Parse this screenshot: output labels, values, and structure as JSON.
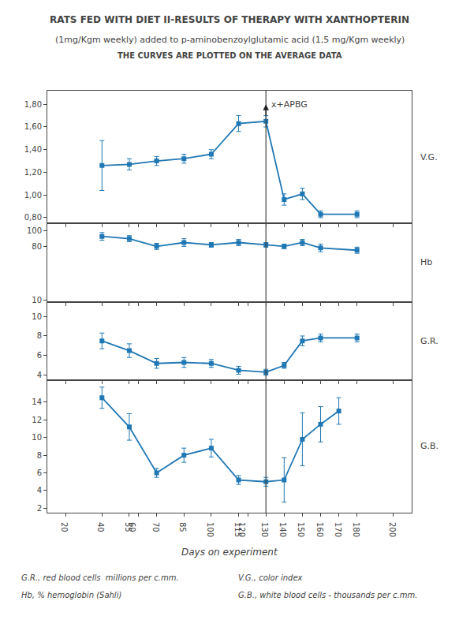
{
  "chart_data": [
    {
      "type": "line",
      "title": "RATS FED WITH DIET II-RESULTS OF THERAPY WITH XANTHOPTERIN",
      "subtitle": [
        "(1mg/Kgm weekly) added to p-aminobenzoylglutamic acid (1,5 mg/Kgm weekly)",
        "THE CURVES ARE PLOTTED ON THE AVERAGE DATA"
      ],
      "label": "V.G.",
      "x": [
        40,
        55,
        70,
        85,
        100,
        115,
        130,
        140,
        150,
        160,
        180
      ],
      "values": [
        1.26,
        1.27,
        1.3,
        1.32,
        1.36,
        1.63,
        1.65,
        0.96,
        1.01,
        0.83,
        0.83
      ],
      "yerr": [
        0.22,
        0.05,
        0.04,
        0.04,
        0.04,
        0.07,
        0.05,
        0.05,
        0.05,
        0.03,
        0.03
      ],
      "xlim": [
        10,
        210
      ],
      "xticks": [
        20,
        40,
        55,
        60,
        70,
        85,
        100,
        115,
        120,
        130,
        140,
        150,
        160,
        170,
        180,
        200
      ],
      "ylim": [
        0.75,
        1.92
      ],
      "yticks": [
        {
          "value": 0.8,
          "label": "0,80"
        },
        {
          "value": 1.0,
          "label": "1,00"
        },
        {
          "value": 1.2,
          "label": "1,20"
        },
        {
          "value": 1.4,
          "label": "1,40"
        },
        {
          "value": 1.6,
          "label": "1,60"
        },
        {
          "value": 1.8,
          "label": "1,80"
        }
      ],
      "vline_x": 130,
      "annotations": [
        {
          "text": "x+APBG",
          "x": 130,
          "y": 1.8
        }
      ],
      "tick_labels": "y",
      "grid": false,
      "marker": "square",
      "line_style": "solid"
    },
    {
      "type": "line",
      "label": "Hb",
      "x": [
        40,
        55,
        70,
        85,
        100,
        115,
        130,
        140,
        150,
        160,
        180
      ],
      "values": [
        93,
        90,
        80,
        85,
        82,
        85,
        82,
        80,
        85,
        78,
        75
      ],
      "yerr": [
        5,
        4,
        4,
        5,
        3,
        4,
        3,
        3,
        4,
        5,
        4
      ],
      "xlim": [
        10,
        210
      ],
      "xticks": [
        20,
        40,
        55,
        60,
        70,
        85,
        100,
        115,
        120,
        130,
        140,
        150,
        160,
        170,
        180,
        200
      ],
      "ylim": [
        8,
        110
      ],
      "yticks": [
        10,
        80,
        100
      ],
      "vline_x": 130,
      "tick_labels": "y",
      "grid": false,
      "marker": "square",
      "line_style": "solid"
    },
    {
      "type": "line",
      "label": "G.R.",
      "x": [
        40,
        55,
        70,
        85,
        100,
        115,
        130,
        140,
        150,
        160,
        180
      ],
      "values": [
        7.5,
        6.5,
        5.2,
        5.3,
        5.2,
        4.5,
        4.3,
        5.0,
        7.5,
        7.8,
        7.8
      ],
      "yerr": [
        0.8,
        0.7,
        0.5,
        0.5,
        0.4,
        0.4,
        0.3,
        0.3,
        0.5,
        0.4,
        0.4
      ],
      "xlim": [
        10,
        210
      ],
      "xticks": [
        20,
        40,
        55,
        60,
        70,
        85,
        100,
        115,
        120,
        130,
        140,
        150,
        160,
        170,
        180,
        200
      ],
      "ylim": [
        3.5,
        11.5
      ],
      "yticks": [
        4,
        6,
        8,
        10
      ],
      "vline_x": 130,
      "tick_labels": "y",
      "grid": false,
      "marker": "square",
      "line_style": "solid"
    },
    {
      "type": "line",
      "label": "G.B.",
      "xlabel": "Days on experiment",
      "x": [
        40,
        55,
        70,
        85,
        100,
        115,
        130,
        140,
        150,
        160,
        170
      ],
      "values": [
        14.5,
        11.2,
        6.0,
        8.0,
        8.8,
        5.2,
        5.0,
        5.2,
        9.8,
        11.5,
        13.0
      ],
      "yerr": [
        1.2,
        1.5,
        0.5,
        0.8,
        1.0,
        0.5,
        0.5,
        2.5,
        3.0,
        2.0,
        1.5
      ],
      "xlim": [
        10,
        210
      ],
      "xticks": [
        20,
        40,
        55,
        60,
        70,
        85,
        100,
        115,
        120,
        130,
        140,
        150,
        160,
        170,
        180,
        200
      ],
      "ylim": [
        1.5,
        16.5
      ],
      "yticks": [
        2,
        4,
        6,
        8,
        10,
        12,
        14
      ],
      "vline_x": 130,
      "annotations": [
        {
          "text": "G.R., red blood cells  millions per c.mm."
        },
        {
          "text": "Hb, % hemoglobin (Sahli)"
        },
        {
          "text": "V.G., color index"
        },
        {
          "text": "G.B., white blood cells - thousands per c.mm."
        }
      ],
      "grid": false,
      "marker": "square",
      "line_style": "solid"
    }
  ]
}
